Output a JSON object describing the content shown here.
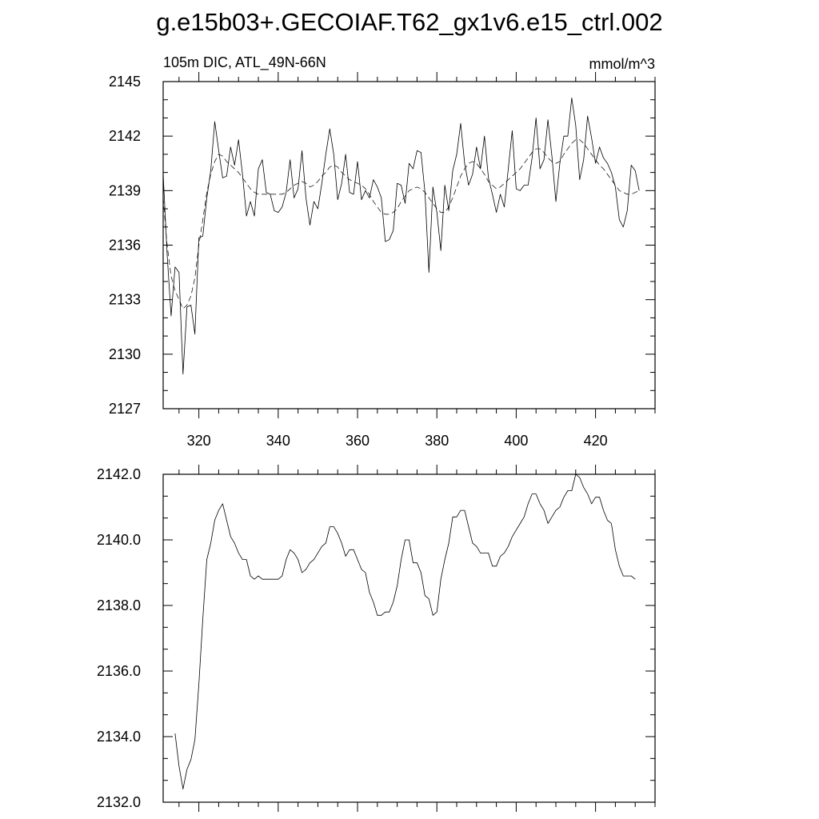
{
  "page": {
    "title": "g.e15b03+.GECOIAF.T62_gx1v6.e15_ctrl.002"
  },
  "chart_data": [
    {
      "type": "line",
      "title": "",
      "subtitle_left": "105m DIC, ATL_49N-66N",
      "subtitle_right": "mmol/m^3",
      "xlabel": "",
      "ylabel": "",
      "xlim": [
        311,
        435
      ],
      "ylim": [
        2127,
        2145
      ],
      "xticks": [
        320,
        340,
        360,
        380,
        400,
        420
      ],
      "yticks": [
        2127,
        2130,
        2133,
        2136,
        2139,
        2142,
        2145
      ],
      "ytick_decimals": 0,
      "grid": false,
      "legend": "none",
      "series": [
        {
          "style": "solid",
          "x_start": 311,
          "x_step": 1,
          "values": [
            2139.9,
            2135.5,
            2132.1,
            2134.8,
            2134.5,
            2128.9,
            2132.6,
            2132.7,
            2131.1,
            2136.4,
            2136.5,
            2138.6,
            2140.1,
            2142.8,
            2141.2,
            2139.7,
            2139.8,
            2141.4,
            2140.4,
            2141.8,
            2139.9,
            2137.6,
            2138.4,
            2137.6,
            2140.2,
            2140.7,
            2138.9,
            2138.8,
            2137.9,
            2137.8,
            2138.1,
            2138.9,
            2140.7,
            2138.6,
            2139.1,
            2141.2,
            2138.6,
            2137.1,
            2138.4,
            2138.0,
            2139.4,
            2141.0,
            2142.4,
            2141.0,
            2138.5,
            2139.4,
            2141.0,
            2138.9,
            2138.8,
            2140.6,
            2138.5,
            2139.0,
            2138.6,
            2139.6,
            2139.2,
            2138.6,
            2136.2,
            2136.3,
            2136.8,
            2139.4,
            2139.3,
            2138.3,
            2140.5,
            2140.2,
            2141.2,
            2141.1,
            2138.9,
            2134.5,
            2139.2,
            2137.8,
            2135.7,
            2139.3,
            2137.9,
            2140.1,
            2141.0,
            2142.7,
            2140.5,
            2139.3,
            2139.9,
            2141.4,
            2140.2,
            2142.0,
            2139.7,
            2138.8,
            2137.8,
            2138.8,
            2138.1,
            2140.2,
            2142.3,
            2139.1,
            2139.0,
            2139.3,
            2139.3,
            2140.8,
            2143.0,
            2140.2,
            2140.7,
            2142.9,
            2140.9,
            2138.4,
            2140.5,
            2142.0,
            2142.0,
            2144.1,
            2142.6,
            2139.6,
            2140.7,
            2143.1,
            2141.9,
            2140.5,
            2141.4,
            2140.8,
            2140.5,
            2140.0,
            2139.2,
            2137.4,
            2137.0,
            2137.9,
            2140.4,
            2140.1,
            2139.0
          ]
        },
        {
          "style": "dashed",
          "x_start": 311,
          "x_step": 1,
          "values": [
            2138.6,
            2136.0,
            2134.3,
            2133.5,
            2133.0,
            2132.5,
            2132.7,
            2133.2,
            2134.2,
            2136.0,
            2137.4,
            2138.9,
            2139.9,
            2140.6,
            2141.0,
            2140.9,
            2140.6,
            2140.4,
            2140.2,
            2140.0,
            2139.7,
            2139.4,
            2139.1,
            2138.9,
            2138.8,
            2138.8,
            2138.8,
            2138.8,
            2138.8,
            2138.8,
            2138.8,
            2138.9,
            2139.1,
            2139.3,
            2139.4,
            2139.5,
            2139.4,
            2139.2,
            2139.3,
            2139.5,
            2139.8,
            2140.0,
            2140.3,
            2140.4,
            2140.3,
            2140.0,
            2139.8,
            2139.6,
            2139.5,
            2139.4,
            2139.3,
            2139.1,
            2138.8,
            2138.4,
            2138.1,
            2137.8,
            2137.7,
            2137.7,
            2137.8,
            2138.0,
            2138.4,
            2138.7,
            2139.0,
            2139.1,
            2139.2,
            2139.1,
            2138.9,
            2138.6,
            2138.3,
            2138.0,
            2137.8,
            2137.8,
            2138.1,
            2138.6,
            2139.2,
            2139.8,
            2140.2,
            2140.5,
            2140.6,
            2140.5,
            2140.2,
            2139.9,
            2139.5,
            2139.3,
            2139.1,
            2139.2,
            2139.4,
            2139.6,
            2139.8,
            2140.0,
            2140.2,
            2140.5,
            2140.8,
            2141.1,
            2141.3,
            2141.3,
            2141.1,
            2140.8,
            2140.6,
            2140.5,
            2140.6,
            2141.0,
            2141.3,
            2141.6,
            2141.8,
            2141.8,
            2141.6,
            2141.3,
            2141.0,
            2140.7,
            2140.4,
            2140.2,
            2139.9,
            2139.6,
            2139.3,
            2139.0,
            2138.9,
            2138.8,
            2138.8,
            2138.9,
            2139.0
          ]
        }
      ]
    },
    {
      "type": "line",
      "title": "",
      "xlabel": "",
      "ylabel": "",
      "xlim": [
        311,
        435
      ],
      "ylim": [
        2132.0,
        2142.0
      ],
      "xticks": [
        320,
        340,
        360,
        380,
        400,
        420
      ],
      "xticks_labeled": false,
      "yticks": [
        2132.0,
        2134.0,
        2136.0,
        2138.0,
        2140.0,
        2142.0
      ],
      "ytick_decimals": 1,
      "grid": false,
      "legend": "none",
      "series": [
        {
          "style": "solid",
          "x_start": 314,
          "x_step": 1,
          "values": [
            2134.1,
            2133.1,
            2132.4,
            2133.0,
            2133.3,
            2133.9,
            2135.6,
            2137.6,
            2139.4,
            2139.9,
            2140.6,
            2140.9,
            2141.1,
            2140.6,
            2140.1,
            2139.9,
            2139.6,
            2139.4,
            2139.4,
            2138.9,
            2138.8,
            2138.9,
            2138.8,
            2138.8,
            2138.8,
            2138.8,
            2138.8,
            2138.9,
            2139.4,
            2139.7,
            2139.6,
            2139.4,
            2139.0,
            2139.1,
            2139.3,
            2139.4,
            2139.6,
            2139.8,
            2139.9,
            2140.4,
            2140.4,
            2140.2,
            2139.9,
            2139.5,
            2139.7,
            2139.7,
            2139.4,
            2139.1,
            2139.0,
            2138.4,
            2138.1,
            2137.7,
            2137.7,
            2137.8,
            2137.8,
            2138.1,
            2138.6,
            2139.4,
            2140.0,
            2140.0,
            2139.3,
            2139.3,
            2139.0,
            2138.3,
            2138.2,
            2137.7,
            2137.8,
            2138.8,
            2139.4,
            2139.9,
            2140.7,
            2140.7,
            2140.9,
            2140.9,
            2140.4,
            2139.9,
            2139.8,
            2139.6,
            2139.6,
            2139.6,
            2139.2,
            2139.2,
            2139.5,
            2139.6,
            2139.8,
            2140.1,
            2140.3,
            2140.5,
            2140.7,
            2141.1,
            2141.4,
            2141.4,
            2141.1,
            2140.9,
            2140.5,
            2140.7,
            2140.9,
            2141.0,
            2141.3,
            2141.5,
            2141.5,
            2142.0,
            2141.9,
            2141.6,
            2141.4,
            2141.1,
            2141.3,
            2141.3,
            2140.9,
            2140.6,
            2140.5,
            2139.7,
            2139.2,
            2138.9,
            2138.9,
            2138.9,
            2138.8
          ]
        }
      ]
    }
  ]
}
